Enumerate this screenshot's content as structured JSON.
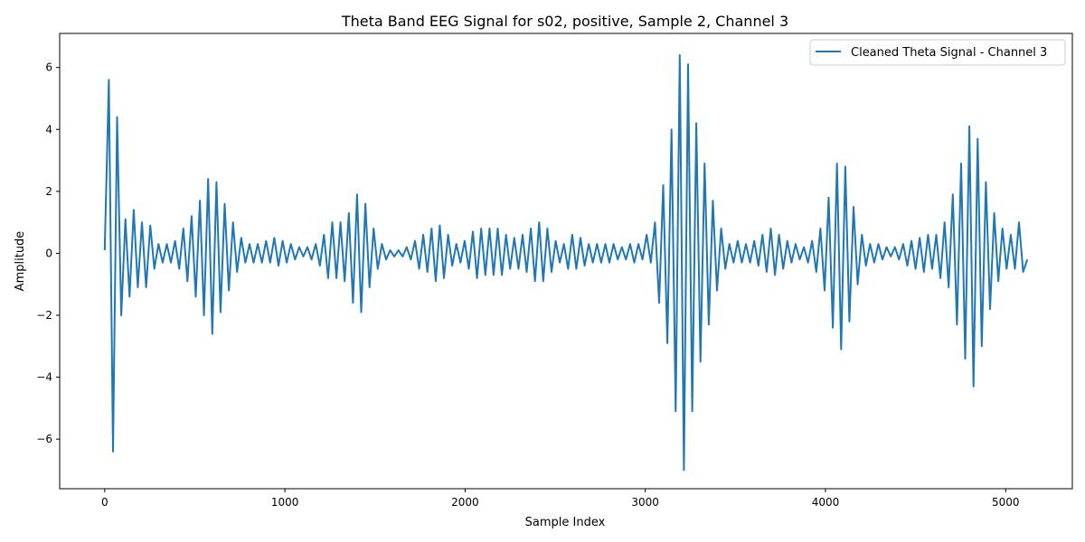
{
  "chart_data": {
    "type": "line",
    "title": "Theta Band EEG Signal for s02, positive, Sample 2, Channel 3",
    "xlabel": "Sample Index",
    "ylabel": "Amplitude",
    "xlim": [
      -250,
      5370
    ],
    "ylim": [
      -7.6,
      7.1
    ],
    "x_ticks": [
      0,
      1000,
      2000,
      3000,
      4000,
      5000
    ],
    "y_ticks": [
      -6,
      -4,
      -2,
      0,
      2,
      4,
      6
    ],
    "x_tick_labels": [
      "0",
      "1000",
      "2000",
      "3000",
      "4000",
      "5000"
    ],
    "y_tick_labels": [
      "−6",
      "−4",
      "−2",
      "0",
      "2",
      "4",
      "6"
    ],
    "grid": false,
    "legend_position": "top-right",
    "series": [
      {
        "name": "Cleaned Theta Signal - Channel 3",
        "color": "#1f77b4",
        "x_start": 0,
        "x_end": 5120,
        "values": [
          0.1,
          5.6,
          -6.4,
          4.4,
          -2.0,
          1.1,
          -1.4,
          1.4,
          -1.1,
          1.0,
          -1.1,
          0.9,
          -0.5,
          0.3,
          -0.3,
          0.3,
          -0.3,
          0.4,
          -0.5,
          0.8,
          -0.9,
          1.2,
          -1.4,
          1.7,
          -2.0,
          2.4,
          -2.6,
          2.3,
          -1.9,
          1.6,
          -1.2,
          1.0,
          -0.6,
          0.5,
          -0.3,
          0.3,
          -0.3,
          0.3,
          -0.3,
          0.4,
          -0.3,
          0.5,
          -0.4,
          0.4,
          -0.3,
          0.3,
          -0.2,
          0.2,
          -0.1,
          0.2,
          -0.2,
          0.3,
          -0.4,
          0.6,
          -0.8,
          1.0,
          -0.8,
          1.0,
          -0.9,
          1.3,
          -1.6,
          1.9,
          -1.9,
          1.6,
          -1.1,
          0.8,
          -0.5,
          0.3,
          -0.2,
          0.1,
          -0.1,
          0.1,
          -0.1,
          0.2,
          -0.2,
          0.4,
          -0.5,
          0.6,
          -0.6,
          0.8,
          -0.9,
          0.9,
          -0.8,
          0.6,
          -0.4,
          0.3,
          -0.3,
          0.4,
          -0.5,
          0.7,
          -0.8,
          0.8,
          -0.7,
          0.8,
          -0.7,
          0.8,
          -0.7,
          0.6,
          -0.5,
          0.5,
          -0.5,
          0.6,
          -0.6,
          0.8,
          -0.9,
          1.0,
          -0.9,
          0.8,
          -0.6,
          0.4,
          -0.3,
          0.3,
          -0.5,
          0.6,
          -0.5,
          0.5,
          -0.4,
          0.3,
          -0.3,
          0.3,
          -0.3,
          0.3,
          -0.3,
          0.3,
          -0.2,
          0.2,
          -0.2,
          0.3,
          -0.3,
          0.3,
          -0.2,
          0.6,
          -0.3,
          1.0,
          -1.6,
          2.2,
          -2.9,
          4.0,
          -5.1,
          6.4,
          -7.0,
          6.1,
          -5.1,
          4.2,
          -3.5,
          2.9,
          -2.3,
          1.7,
          -1.2,
          0.8,
          -0.5,
          0.3,
          -0.3,
          0.4,
          -0.3,
          0.3,
          -0.3,
          0.4,
          -0.4,
          0.6,
          -0.6,
          0.8,
          -0.7,
          0.6,
          -0.5,
          0.4,
          -0.3,
          0.3,
          -0.2,
          0.2,
          -0.3,
          0.4,
          -0.6,
          0.8,
          -1.2,
          1.8,
          -2.4,
          2.9,
          -3.1,
          2.8,
          -2.2,
          1.5,
          -1.0,
          0.6,
          -0.4,
          0.3,
          -0.3,
          0.3,
          -0.2,
          0.2,
          -0.1,
          0.2,
          -0.2,
          0.3,
          -0.4,
          0.4,
          -0.5,
          0.5,
          -0.6,
          0.6,
          -0.5,
          0.6,
          -0.8,
          1.0,
          -1.1,
          1.9,
          -2.3,
          2.9,
          -3.4,
          4.1,
          -4.3,
          3.7,
          -3.0,
          2.3,
          -1.8,
          1.3,
          -0.9,
          0.8,
          -0.5,
          0.6,
          -0.5,
          1.0,
          -0.6,
          -0.2
        ]
      }
    ]
  }
}
